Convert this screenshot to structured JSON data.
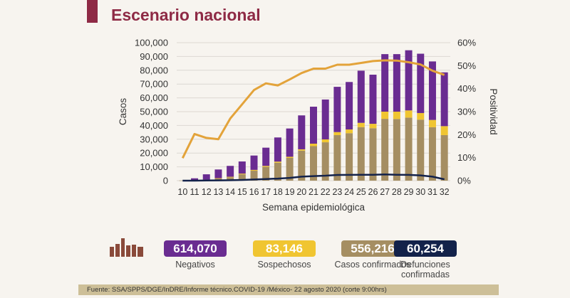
{
  "title": "Escenario nacional",
  "chart_data": {
    "type": "bar",
    "stacked": true,
    "xlabel": "Semana epidemiológica",
    "ylabel": "Casos",
    "y2label": "Positividad",
    "ylim": [
      0,
      100000
    ],
    "y2lim": [
      0,
      60
    ],
    "yticks": [
      "0",
      "10,000",
      "20,000",
      "30,000",
      "40,000",
      "50,000",
      "60,000",
      "70,000",
      "80,000",
      "90,000",
      "100,000"
    ],
    "y2ticks": [
      "0%",
      "10%",
      "20%",
      "30%",
      "40%",
      "50%",
      "60%"
    ],
    "grid": true,
    "categories": [
      "10",
      "11",
      "12",
      "13",
      "14",
      "15",
      "16",
      "17",
      "18",
      "19",
      "20",
      "21",
      "22",
      "23",
      "24",
      "25",
      "26",
      "27",
      "28",
      "29",
      "30",
      "31",
      "32"
    ],
    "series": [
      {
        "key": "confirmados",
        "color": "#a58e62",
        "values": [
          100,
          300,
          600,
          1500,
          2400,
          4600,
          7200,
          10000,
          13000,
          16500,
          21800,
          25000,
          27800,
          33000,
          34400,
          38800,
          38000,
          44800,
          44700,
          45700,
          44200,
          38700,
          33000
        ]
      },
      {
        "key": "sospechosos",
        "color": "#f0c531",
        "values": [
          0,
          100,
          200,
          300,
          400,
          500,
          600,
          700,
          800,
          800,
          900,
          1800,
          2100,
          2200,
          2700,
          3100,
          3200,
          5200,
          5300,
          5200,
          4800,
          5300,
          6500
        ]
      },
      {
        "key": "negativos",
        "color": "#6a2c91",
        "values": [
          0,
          1300,
          3800,
          6300,
          7900,
          8800,
          10400,
          13200,
          17500,
          20500,
          24600,
          26800,
          28900,
          32800,
          34400,
          37800,
          35600,
          41700,
          41700,
          43600,
          43000,
          42400,
          39000
        ]
      }
    ],
    "lines": [
      {
        "key": "positividad",
        "axis": "right",
        "color": "#e3a33a",
        "values": [
          9.8,
          20.3,
          18.6,
          18,
          27,
          33.2,
          39.4,
          42.3,
          41.4,
          44,
          46.8,
          48.7,
          48.7,
          50.4,
          50.4,
          51.2,
          52,
          52.3,
          52.2,
          51.5,
          50.5,
          47.8,
          46
        ]
      },
      {
        "key": "defunciones",
        "axis": "left",
        "color": "#13224a",
        "values": [
          0,
          0,
          100,
          200,
          300,
          500,
          800,
          1200,
          1500,
          2000,
          2900,
          3300,
          3600,
          4100,
          4200,
          4300,
          4300,
          4500,
          4300,
          4200,
          3800,
          2900,
          1000
        ]
      }
    ]
  },
  "summary": [
    {
      "value": "614,070",
      "label": "Negativos",
      "color": "#6a2c91"
    },
    {
      "value": "83,146",
      "label": "Sospechosos",
      "color": "#f0c531"
    },
    {
      "value": "556,216",
      "label": "Casos confirmados",
      "color": "#a58e62"
    },
    {
      "value": "60,254",
      "label": "Defunciones confirmadas",
      "color": "#13224a"
    }
  ],
  "footer": "Fuente: SSA/SPPS/DGE/InDRE/Informe técnico.COVID-19 /México- 22 agosto 2020 (corte 9:00hrs)"
}
